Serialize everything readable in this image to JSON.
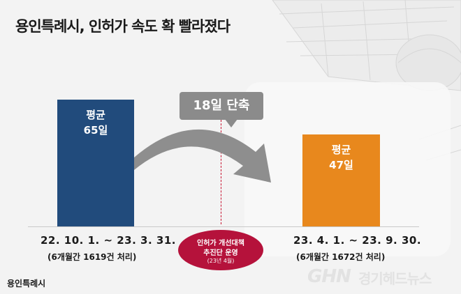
{
  "header": {
    "title": "용인특례시, 인허가 속도 확 빨라졌다"
  },
  "chart_data": {
    "type": "bar",
    "title": "용인특례시, 인허가 속도 확 빨라졌다",
    "unit": "일",
    "series": [
      {
        "label_top": "평균",
        "label_value": "65일",
        "value": 65,
        "color": "#214b7c",
        "range": "22. 10. 1. ~ 23. 3. 31.",
        "count_note": "(6개월간 1619건 처리)"
      },
      {
        "label_top": "평균",
        "label_value": "47일",
        "value": 47,
        "color": "#e8881d",
        "range": "23. 4. 1. ~ 23. 9. 30.",
        "count_note": "(6개월간 1672건 처리)"
      }
    ],
    "annotation": "18일 단축",
    "divider": {
      "line1": "인허가 개선대책",
      "line2": "추진단 운영",
      "line3": "(23년 4월)"
    }
  },
  "watermarks": {
    "left_logo": "용인특례시",
    "right_logo_en": "GHN",
    "right_logo_kr": "경기헤드뉴스"
  },
  "colors": {
    "bar_before": "#214b7c",
    "bar_after": "#e8881d",
    "badge": "#8b8b8b",
    "oval": "#b5123b"
  }
}
